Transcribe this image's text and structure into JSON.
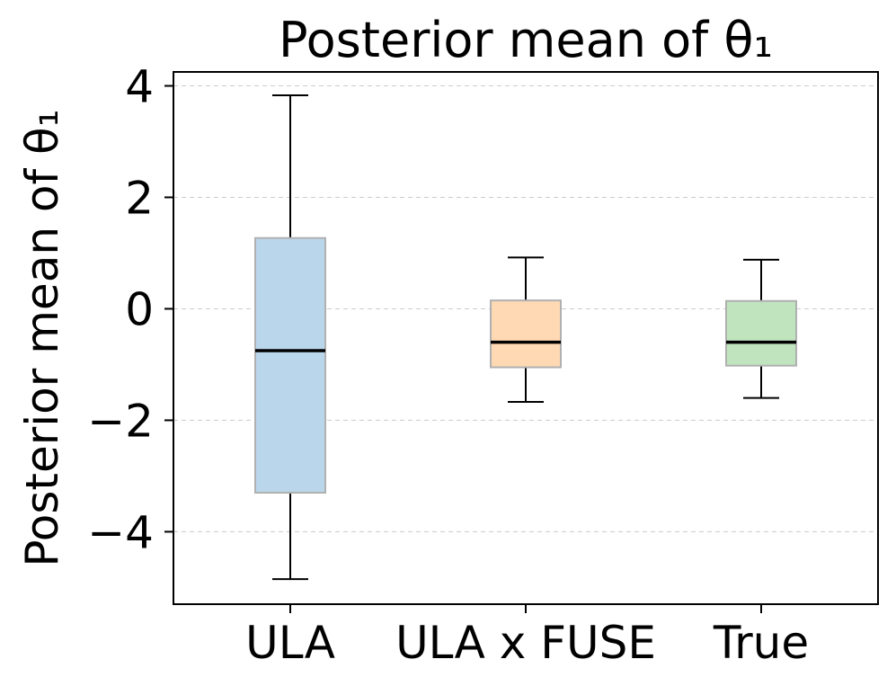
{
  "chart_data": {
    "type": "box",
    "title": "Posterior mean of θ₁",
    "ylabel": "Posterior mean of θ₁",
    "xlabel": "",
    "ylim": [
      -5.3,
      4.25
    ],
    "yticks": [
      -4,
      -2,
      0,
      2,
      4
    ],
    "ytick_labels": [
      "−4",
      "−2",
      "0",
      "2",
      "4"
    ],
    "grid": "y-dashed",
    "categories": [
      "ULA",
      "ULA x FUSE",
      "True"
    ],
    "boxes": [
      {
        "label": "ULA",
        "whisker_low": -4.85,
        "q1": -3.3,
        "median": -0.75,
        "q3": 1.27,
        "whisker_high": 3.83,
        "color": "#bad6ea"
      },
      {
        "label": "ULA x FUSE",
        "whisker_low": -1.67,
        "q1": -1.05,
        "median": -0.6,
        "q3": 0.15,
        "whisker_high": 0.92,
        "color": "#ffd9b4"
      },
      {
        "label": "True",
        "whisker_low": -1.6,
        "q1": -1.02,
        "median": -0.6,
        "q3": 0.14,
        "whisker_high": 0.88,
        "color": "#bfe4be"
      }
    ]
  }
}
